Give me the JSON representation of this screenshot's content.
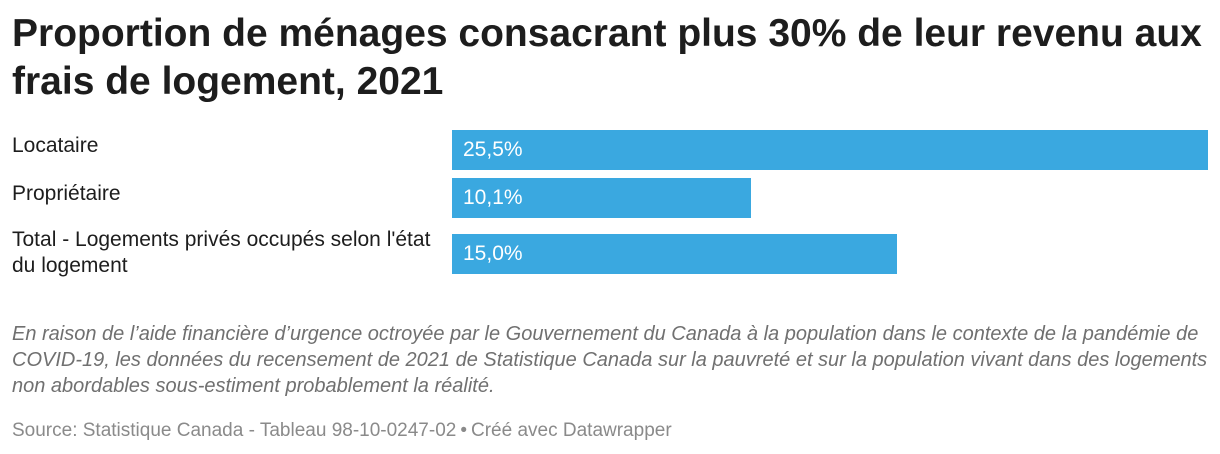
{
  "title": "Proportion de ménages consacrant plus 30% de leur revenu aux frais de logement, 2021",
  "chart_data": {
    "type": "bar",
    "orientation": "horizontal",
    "categories": [
      "Locataire",
      "Propriétaire",
      "Total - Logements privés occupés selon l'état du logement"
    ],
    "values": [
      25.5,
      10.1,
      15.0
    ],
    "value_labels": [
      "25,5%",
      "10,1%",
      "15,0%"
    ],
    "unit": "%",
    "xlim": [
      0,
      25.5
    ],
    "grid": false,
    "legend": "none",
    "bar_color": "#3aa8e0"
  },
  "note": "En raison de l’aide financière d’urgence octroyée par le Gouvernement du Canada à la population dans le contexte de la pandémie de COVID-19, les données du recensement de 2021 de Statistique Canada sur la pauvreté et sur la population vivant dans des logements non abordables sous-estiment probablement la réalité.",
  "footer": {
    "source": "Source: Statistique Canada - Tableau 98-10-0247-02",
    "separator": "•",
    "credit": "Créé avec Datawrapper"
  }
}
